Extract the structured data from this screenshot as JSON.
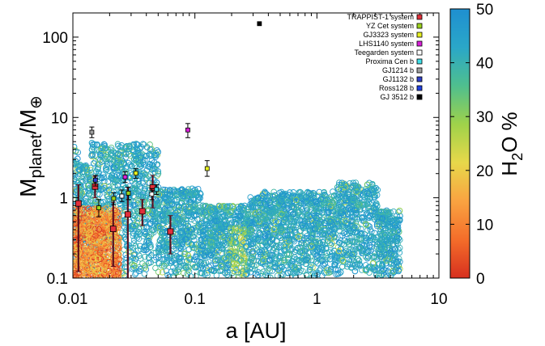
{
  "chart_data": {
    "type": "scatter",
    "title": "",
    "xlabel": "a [AU]",
    "ylabel": {
      "base": "M",
      "sub1": "planet",
      "mid": "/M",
      "sub2": "⊕"
    },
    "xscale": "log",
    "yscale": "log",
    "xlim": [
      0.01,
      10
    ],
    "ylim": [
      0.1,
      200
    ],
    "xticks": [
      {
        "value": 0.01,
        "label": "0.01"
      },
      {
        "value": 0.1,
        "label": "0.1"
      },
      {
        "value": 1,
        "label": "1"
      },
      {
        "value": 10,
        "label": "10"
      }
    ],
    "yticks": [
      {
        "value": 0.1,
        "label": "0.1"
      },
      {
        "value": 1,
        "label": "1"
      },
      {
        "value": 10,
        "label": "10"
      },
      {
        "value": 100,
        "label": "100"
      }
    ],
    "grid": false,
    "legend_position": "top-right",
    "colorbar": {
      "label": {
        "base": "H",
        "sub": "2",
        "rest": "O %"
      },
      "min": 0,
      "max": 50,
      "ticks": [
        "0",
        "10",
        "20",
        "30",
        "40",
        "50"
      ],
      "colors": [
        "#d7301f",
        "#f46d2a",
        "#f9a341",
        "#e8d84a",
        "#9fd24a",
        "#4fbf8e",
        "#2aa7c8",
        "#1f8fd0"
      ]
    },
    "simulated_population": {
      "marker": "open-circle",
      "note_counts_are_approximate": true
    },
    "series": [
      {
        "name": "TRAPPIST-1 system",
        "color": "#e0303a",
        "marker": "square",
        "points": [
          {
            "x": 0.0111,
            "y": 0.85,
            "ylo": 0.12,
            "yhi": 1.45
          },
          {
            "x": 0.0152,
            "y": 1.38,
            "ylo": 1.0,
            "yhi": 1.85
          },
          {
            "x": 0.0214,
            "y": 0.41,
            "ylo": 0.14,
            "yhi": 0.88
          },
          {
            "x": 0.0282,
            "y": 0.62,
            "ylo": 0.1,
            "yhi": 1.35
          },
          {
            "x": 0.0371,
            "y": 0.68,
            "ylo": 0.45,
            "yhi": 0.95
          },
          {
            "x": 0.0451,
            "y": 1.34,
            "ylo": 0.75,
            "yhi": 1.9
          },
          {
            "x": 0.063,
            "y": 0.38,
            "ylo": 0.2,
            "yhi": 0.6
          }
        ]
      },
      {
        "name": "YZ Cet system",
        "color": "#9bd21d",
        "marker": "square",
        "points": [
          {
            "x": 0.0163,
            "y": 0.75,
            "ylo": 0.58,
            "yhi": 0.95
          },
          {
            "x": 0.0216,
            "y": 0.98,
            "ylo": 0.82,
            "yhi": 1.15
          },
          {
            "x": 0.0285,
            "y": 1.14,
            "ylo": 0.95,
            "yhi": 1.35
          }
        ]
      },
      {
        "name": "GJ3323 system",
        "color": "#e6f020",
        "marker": "square",
        "points": [
          {
            "x": 0.0328,
            "y": 2.02,
            "ylo": 1.75,
            "yhi": 2.3
          },
          {
            "x": 0.126,
            "y": 2.31,
            "ylo": 1.85,
            "yhi": 2.9
          }
        ]
      },
      {
        "name": "LHS1140 system",
        "color": "#d820d8",
        "marker": "square",
        "points": [
          {
            "x": 0.0875,
            "y": 6.98,
            "ylo": 5.6,
            "yhi": 8.4
          },
          {
            "x": 0.0268,
            "y": 1.81,
            "ylo": 1.55,
            "yhi": 2.1
          }
        ]
      },
      {
        "name": "Teegarden system",
        "color": "#ffffff",
        "marker": "square",
        "points": [
          {
            "x": 0.0252,
            "y": 1.05,
            "ylo": 0.9,
            "yhi": 1.25
          },
          {
            "x": 0.0443,
            "y": 1.11,
            "ylo": 0.95,
            "yhi": 1.3
          }
        ]
      },
      {
        "name": "Proxima Cen b",
        "color": "#40e0e8",
        "marker": "square",
        "points": [
          {
            "x": 0.0485,
            "y": 1.27,
            "ylo": 1.1,
            "yhi": 1.45
          }
        ]
      },
      {
        "name": "GJ1214 b",
        "color": "#a0a0a0",
        "marker": "square",
        "points": [
          {
            "x": 0.0143,
            "y": 6.55,
            "ylo": 5.6,
            "yhi": 7.6
          }
        ]
      },
      {
        "name": "GJ1132 b",
        "color": "#3040c8",
        "marker": "square",
        "points": [
          {
            "x": 0.0153,
            "y": 1.66,
            "ylo": 1.4,
            "yhi": 1.9
          }
        ]
      },
      {
        "name": "Ross128 b",
        "color": "#2040e0",
        "marker": "square",
        "points": []
      },
      {
        "name": "GJ 3512 b",
        "color": "#000000",
        "marker": "square",
        "points": [
          {
            "x": 0.338,
            "y": 147,
            "ylo": 147,
            "yhi": 147
          }
        ]
      }
    ]
  }
}
